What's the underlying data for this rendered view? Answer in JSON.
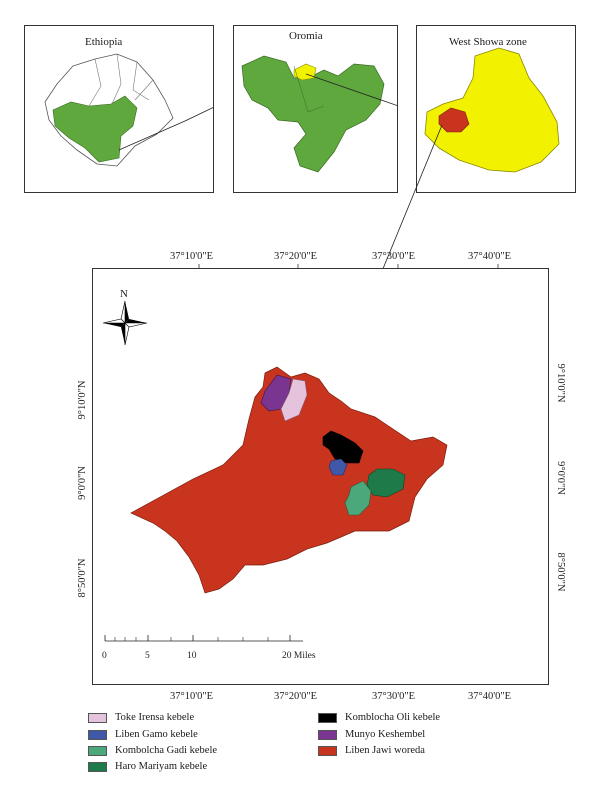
{
  "inset_maps": [
    {
      "title": "Ethiopia"
    },
    {
      "title": "Oromia"
    },
    {
      "title": "West Showa zone"
    }
  ],
  "graticule": {
    "top_labels": [
      "37°10'0\"E",
      "37°20'0\"E",
      "37°30'0\"E",
      "37°40'0\"E"
    ],
    "bottom_labels": [
      "37°10'0\"E",
      "37°20'0\"E",
      "37°30'0\"E",
      "37°40'0\"E"
    ],
    "left_labels": [
      "9°10'0\"N",
      "9°0'0\"N",
      "8°50'0\"N"
    ],
    "right_labels": [
      "9°10'0\"N",
      "9°0'0\"N",
      "8°50'0\"N"
    ]
  },
  "north_arrow": {
    "label": "N"
  },
  "scale_bar": {
    "ticks": [
      "0",
      "5",
      "10",
      "20 Miles"
    ]
  },
  "colors": {
    "green": "#5fa83e",
    "yellow": "#f2f200",
    "red_woreda": "#c8341e",
    "toke_irensa": "#e6c3dc",
    "liben_gamo": "#3f58a8",
    "kombolcha_gadi": "#4aa87a",
    "haro_mariyam": "#1f7a4a",
    "komblocha_oli": "#000000",
    "munyo_keshembel": "#7a3590"
  },
  "legend": [
    {
      "label": "Toke Irensa kebele",
      "color": "#e6c3dc"
    },
    {
      "label": "Liben Gamo kebele",
      "color": "#3f58a8"
    },
    {
      "label": "Kombolcha Gadi kebele",
      "color": "#4aa87a"
    },
    {
      "label": "Haro Mariyam kebele",
      "color": "#1f7a4a"
    },
    {
      "label": "Komblocha Oli kebele",
      "color": "#000000"
    },
    {
      "label": "Munyo Keshembel",
      "color": "#7a3590"
    },
    {
      "label": "Liben Jawi woreda",
      "color": "#c8341e"
    }
  ]
}
